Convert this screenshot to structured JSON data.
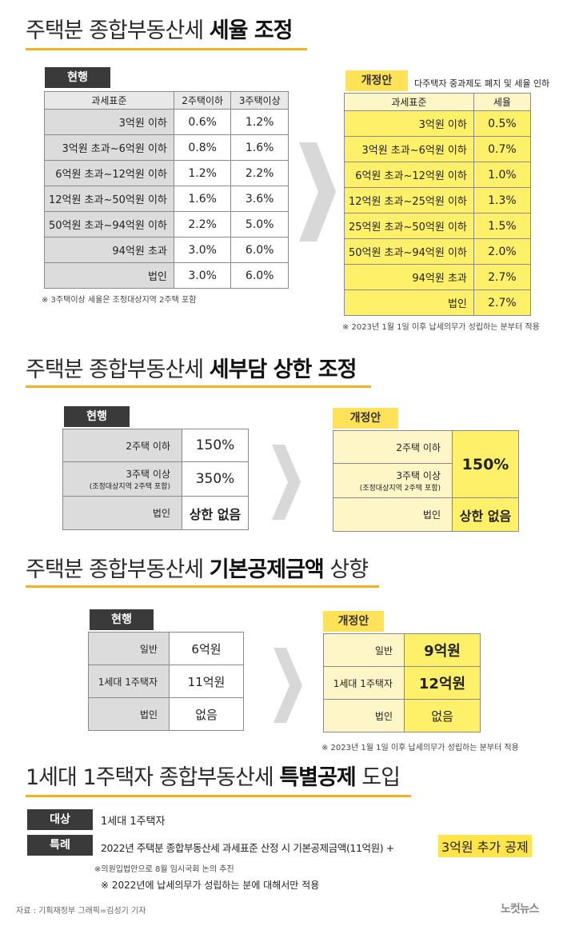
{
  "sec1": {
    "title_pre": "주택분 종합부동산세 ",
    "title_bold": "세율 조정",
    "current_tag": "현행",
    "current_headers": [
      "과세표준",
      "2주택이하",
      "3주택이상"
    ],
    "current_rows": [
      [
        "3억원 이하",
        "0.6%",
        "1.2%"
      ],
      [
        "3억원 초과~6억원 이하",
        "0.8%",
        "1.6%"
      ],
      [
        "6억원 초과~12억원 이하",
        "1.2%",
        "2.2%"
      ],
      [
        "12억원 초과~50억원 이하",
        "1.6%",
        "3.6%"
      ],
      [
        "50억원 초과~94억원 이하",
        "2.2%",
        "5.0%"
      ],
      [
        "94억원 초과",
        "3.0%",
        "6.0%"
      ],
      [
        "법인",
        "3.0%",
        "6.0%"
      ]
    ],
    "current_note": "※ 3주택이상 세율은 조정대상지역 2주택 포함",
    "new_tag": "개정안",
    "new_subtitle": "다주택자 중과제도 폐지 및 세율 인하",
    "new_headers": [
      "과세표준",
      "세율"
    ],
    "new_rows": [
      [
        "3억원 이하",
        "0.5%"
      ],
      [
        "3억원 초과~6억원 이하",
        "0.7%"
      ],
      [
        "6억원 초과~12억원 이하",
        "1.0%"
      ],
      [
        "12억원 초과~25억원 이하",
        "1.3%"
      ],
      [
        "25억원 초과~50억원 이하",
        "1.5%"
      ],
      [
        "50억원 초과~94억원 이하",
        "2.0%"
      ],
      [
        "94억원 초과",
        "2.7%"
      ],
      [
        "법인",
        "2.7%"
      ]
    ],
    "new_note": "※ 2023년 1월 1일 이후 납세의무가 성립하는 분부터 적용"
  },
  "sec2": {
    "title_pre": "주택분 종합부동산세 ",
    "title_bold": "세부담 상한 조정",
    "current_tag": "현행",
    "cur_r1_label": "2주택 이하",
    "cur_r1_val": "150%",
    "cur_r2_label": "3주택 이상",
    "cur_r2_sub": "(조정대상지역 2주택 포함)",
    "cur_r2_val": "350%",
    "cur_r3_label": "법인",
    "cur_r3_val": "상한 없음",
    "new_tag": "개정안",
    "new_r1_label": "2주택 이하",
    "new_r2_label": "3주택 이상",
    "new_r2_sub": "(조정대상지역 2주택 포함)",
    "new_merged_val": "150%",
    "new_r3_label": "법인",
    "new_r3_val": "상한 없음"
  },
  "sec3": {
    "title_pre": "주택분 종합부동산세 ",
    "title_bold": "기본공제금액",
    "title_post": " 상향",
    "current_tag": "현행",
    "current_rows": [
      [
        "일반",
        "6억원"
      ],
      [
        "1세대 1주택자",
        "11억원"
      ],
      [
        "법인",
        "없음"
      ]
    ],
    "new_tag": "개정안",
    "new_rows": [
      [
        "일반",
        "9억원"
      ],
      [
        "1세대 1주택자",
        "12억원"
      ],
      [
        "법인",
        "없음"
      ]
    ],
    "new_note": "※ 2023년 1월 1일 이후 납세의무가 성립하는 분부터 적용"
  },
  "sec4": {
    "title_pre": "1세대 1주택자 종합부동산세 ",
    "title_bold": "특별공제",
    "title_post": " 도입",
    "target_tag": "대상",
    "target_text": "1세대 1주택자",
    "special_tag": "특례",
    "special_text": "2022년 주택분 종합부동산세 과세표준 산정 시 기본공제금액(11억원) +",
    "special_highlight": "3억원 추가 공제",
    "note1": "※의원입법안으로 8월 임시국회 논의 추진",
    "note2": "※ 2022년에 납세의무가 성립하는 분에 대해서만 적용"
  },
  "footer": {
    "source": "자료 : 기획재정부   그래픽=김성기 기자",
    "logo": "노컷뉴스"
  },
  "colors": {
    "accent": "#f2b01e",
    "highlight": "#fff06a",
    "dark_tag": "#3a3a3a",
    "gray_cell": "#dcdcdc"
  }
}
